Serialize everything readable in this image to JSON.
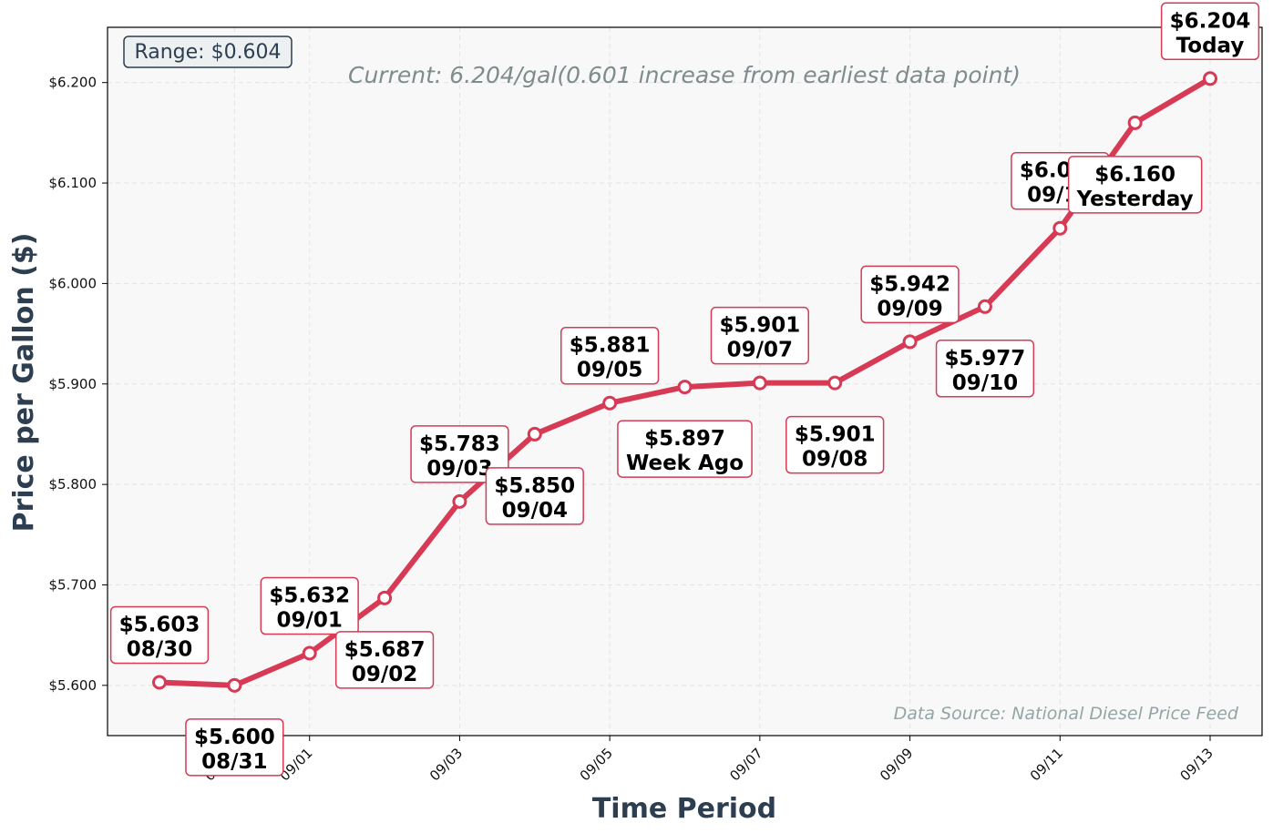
{
  "chart_data": {
    "type": "line",
    "x": [
      "08/30",
      "08/31",
      "09/01",
      "09/02",
      "09/03",
      "09/04",
      "09/05",
      "09/06",
      "09/07",
      "09/08",
      "09/09",
      "09/10",
      "09/11",
      "09/12",
      "09/13"
    ],
    "values": [
      5.603,
      5.6,
      5.632,
      5.687,
      5.783,
      5.85,
      5.881,
      5.897,
      5.901,
      5.901,
      5.942,
      5.977,
      6.055,
      6.16,
      6.204
    ],
    "xlabel": "Time Period",
    "ylabel": "Price per Gallon ($)",
    "ylim": [
      5.55,
      6.255
    ],
    "y_ticks": [
      "$5.600",
      "$5.700",
      "$5.800",
      "$5.900",
      "$6.000",
      "$6.100",
      "$6.200"
    ],
    "x_ticks": [
      "08/31",
      "09/01",
      "09/03",
      "09/05",
      "09/07",
      "09/09",
      "09/11",
      "09/13"
    ],
    "annotations": [
      {
        "price": "$5.603",
        "label": "08/30",
        "pos": "above"
      },
      {
        "price": "$5.600",
        "label": "08/31",
        "pos": "below"
      },
      {
        "price": "$5.632",
        "label": "09/01",
        "pos": "above"
      },
      {
        "price": "$5.687",
        "label": "09/02",
        "pos": "below"
      },
      {
        "price": "$5.783",
        "label": "09/03",
        "pos": "above"
      },
      {
        "price": "$5.850",
        "label": "09/04",
        "pos": "below"
      },
      {
        "price": "$5.881",
        "label": "09/05",
        "pos": "above"
      },
      {
        "price": "$5.897",
        "label": "Week Ago",
        "pos": "below"
      },
      {
        "price": "$5.901",
        "label": "09/07",
        "pos": "above"
      },
      {
        "price": "$5.901",
        "label": "09/08",
        "pos": "below"
      },
      {
        "price": "$5.942",
        "label": "09/09",
        "pos": "above"
      },
      {
        "price": "$5.977",
        "label": "09/10",
        "pos": "below"
      },
      {
        "price": "$6.055",
        "label": "09/11",
        "pos": "above"
      },
      {
        "price": "$6.160",
        "label": "Yesterday",
        "pos": "below"
      },
      {
        "price": "$6.204",
        "label": "Today",
        "pos": "above"
      }
    ],
    "range_label": "Range: $0.604",
    "current_label": "Current: 6.204/gal(0.601 increase from earliest data point)",
    "source_label": "Data Source: National Diesel Price Feed",
    "grid": true
  },
  "colors": {
    "line": "#d63a55",
    "plot_bg": "#f8f8f8",
    "grid": "#e3e3e3",
    "axis_title": "#2c3e50",
    "range_box_bg": "#ecf0f1"
  }
}
